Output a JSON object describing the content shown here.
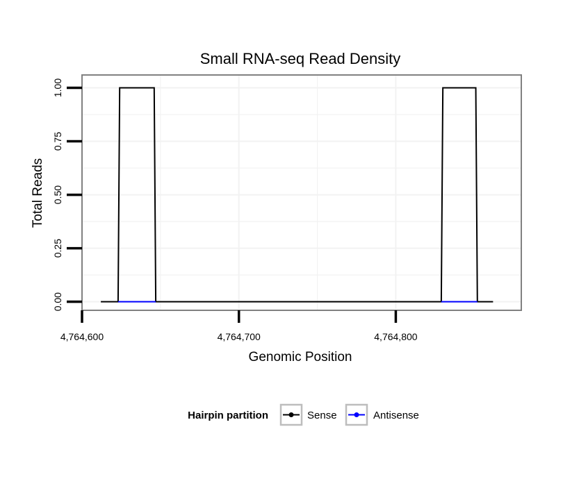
{
  "chart_data": {
    "type": "line",
    "title": "Small RNA-seq Read Density",
    "xlabel": "Genomic Position",
    "ylabel": "Total Reads",
    "xlim": [
      4764600,
      4764880
    ],
    "ylim": [
      -0.04,
      1.06
    ],
    "x_ticks": [
      4764600,
      4764700,
      4764800
    ],
    "x_tick_labels": [
      "4,764,600",
      "4,764,700",
      "4,764,800"
    ],
    "y_ticks": [
      0,
      0.25,
      0.5,
      0.75,
      1.0
    ],
    "y_tick_labels": [
      "0.00",
      "0.25",
      "0.50",
      "0.75",
      "1.00"
    ],
    "grid": true,
    "legend": {
      "title": "Hairpin partition",
      "placement": "bottom",
      "entries": [
        {
          "name": "Sense",
          "color": "#000000"
        },
        {
          "name": "Antisense",
          "color": "#0000ff"
        }
      ]
    },
    "series": [
      {
        "name": "Sense",
        "color": "#000000",
        "x": [
          4764612,
          4764623,
          4764624,
          4764646,
          4764647,
          4764829,
          4764830,
          4764851,
          4764852,
          4764862
        ],
        "y": [
          0,
          0,
          1,
          1,
          0,
          0,
          1,
          1,
          0,
          0
        ]
      },
      {
        "name": "Antisense",
        "color": "#0000ff",
        "segments": [
          {
            "x": [
              4764623,
              4764647
            ],
            "y": [
              0,
              0
            ]
          },
          {
            "x": [
              4764829,
              4764852
            ],
            "y": [
              0,
              0
            ]
          }
        ]
      }
    ]
  }
}
